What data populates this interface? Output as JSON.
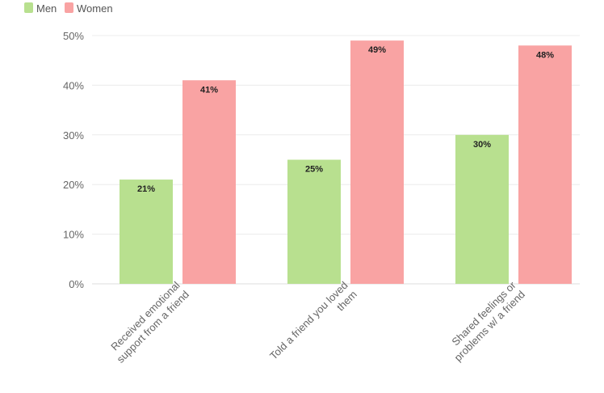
{
  "chart_data": {
    "type": "bar",
    "title": "",
    "xlabel": "",
    "ylabel": "",
    "categories": [
      [
        "Received emotional",
        "support from a friend"
      ],
      [
        "Told a friend you loved",
        "them"
      ],
      [
        "Shared feelings or",
        "problems w/ a friend"
      ]
    ],
    "series": [
      {
        "name": "Men",
        "values": [
          21,
          25,
          30
        ],
        "color": "#b8e08f",
        "labels": [
          "21%",
          "25%",
          "30%"
        ]
      },
      {
        "name": "Women",
        "values": [
          41,
          49,
          48
        ],
        "color": "#f9a3a3",
        "labels": [
          "41%",
          "49%",
          "48%"
        ]
      }
    ],
    "ylim": [
      0,
      50
    ],
    "yticks": [
      0,
      10,
      20,
      30,
      40,
      50
    ],
    "ytick_labels": [
      "0%",
      "10%",
      "20%",
      "30%",
      "40%",
      "50%"
    ],
    "grid": true,
    "legend_position": "top-left"
  }
}
